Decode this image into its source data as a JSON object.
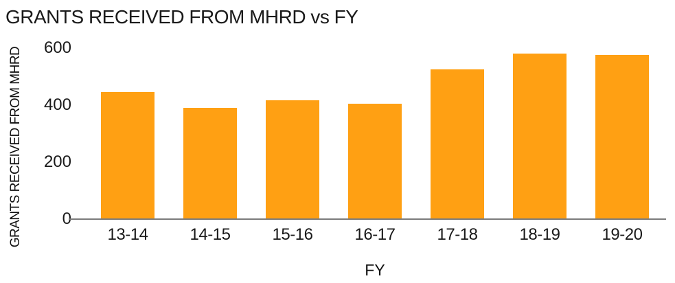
{
  "colors": {
    "bar": "#FFA013",
    "axis_line": "#7B7B7B",
    "text": "#1A1A1A"
  },
  "chart_data": {
    "type": "bar",
    "title": "GRANTS RECEIVED FROM MHRD vs FY",
    "xlabel": "FY",
    "ylabel": "GRANTS RECEIVED FROM MHRD",
    "categories": [
      "13-14",
      "14-15",
      "15-16",
      "16-17",
      "17-18",
      "18-19",
      "19-20"
    ],
    "values": [
      445,
      390,
      418,
      405,
      525,
      580,
      575
    ],
    "ylim": [
      0,
      600
    ],
    "yticks": [
      0,
      200,
      400,
      600
    ],
    "grid": false,
    "legend": false,
    "bar_color": "#FFA013"
  }
}
